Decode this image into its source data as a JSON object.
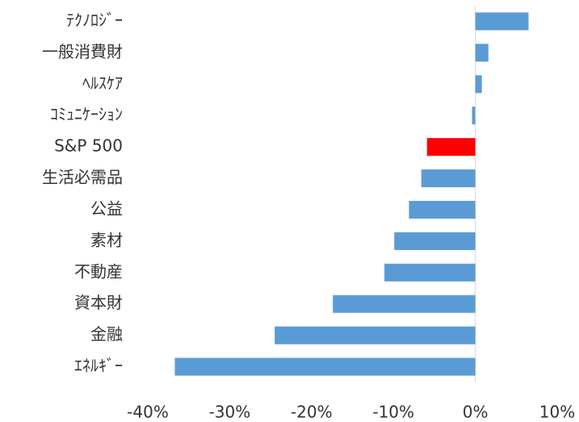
{
  "chart_data": {
    "type": "hbar",
    "categories": [
      "ﾃｸﾉﾛｼﾞｰ",
      "一般消費財",
      "ﾍﾙｽｹｱ",
      "ｺﾐｭﾆｹｰｼｮﾝ",
      "S&P 500",
      "生活必需品",
      "公益",
      "素材",
      "不動産",
      "資本財",
      "金融",
      "ｴﾈﾙｷﾞｰ"
    ],
    "values": [
      6.5,
      1.6,
      0.8,
      -0.4,
      -5.9,
      -6.6,
      -8.1,
      -9.9,
      -11.1,
      -17.4,
      -24.5,
      -36.7
    ],
    "colors": [
      "#5b9bd5",
      "#5b9bd5",
      "#5b9bd5",
      "#5b9bd5",
      "#ff0000",
      "#5b9bd5",
      "#5b9bd5",
      "#5b9bd5",
      "#5b9bd5",
      "#5b9bd5",
      "#5b9bd5",
      "#5b9bd5"
    ],
    "xlim": [
      -40,
      10
    ],
    "xticks": [
      {
        "value": -40,
        "label": "-40%"
      },
      {
        "value": -30,
        "label": "-30%"
      },
      {
        "value": -20,
        "label": "-20%"
      },
      {
        "value": -10,
        "label": "-10%"
      },
      {
        "value": 0,
        "label": "0%"
      },
      {
        "value": 10,
        "label": "10%"
      }
    ]
  }
}
